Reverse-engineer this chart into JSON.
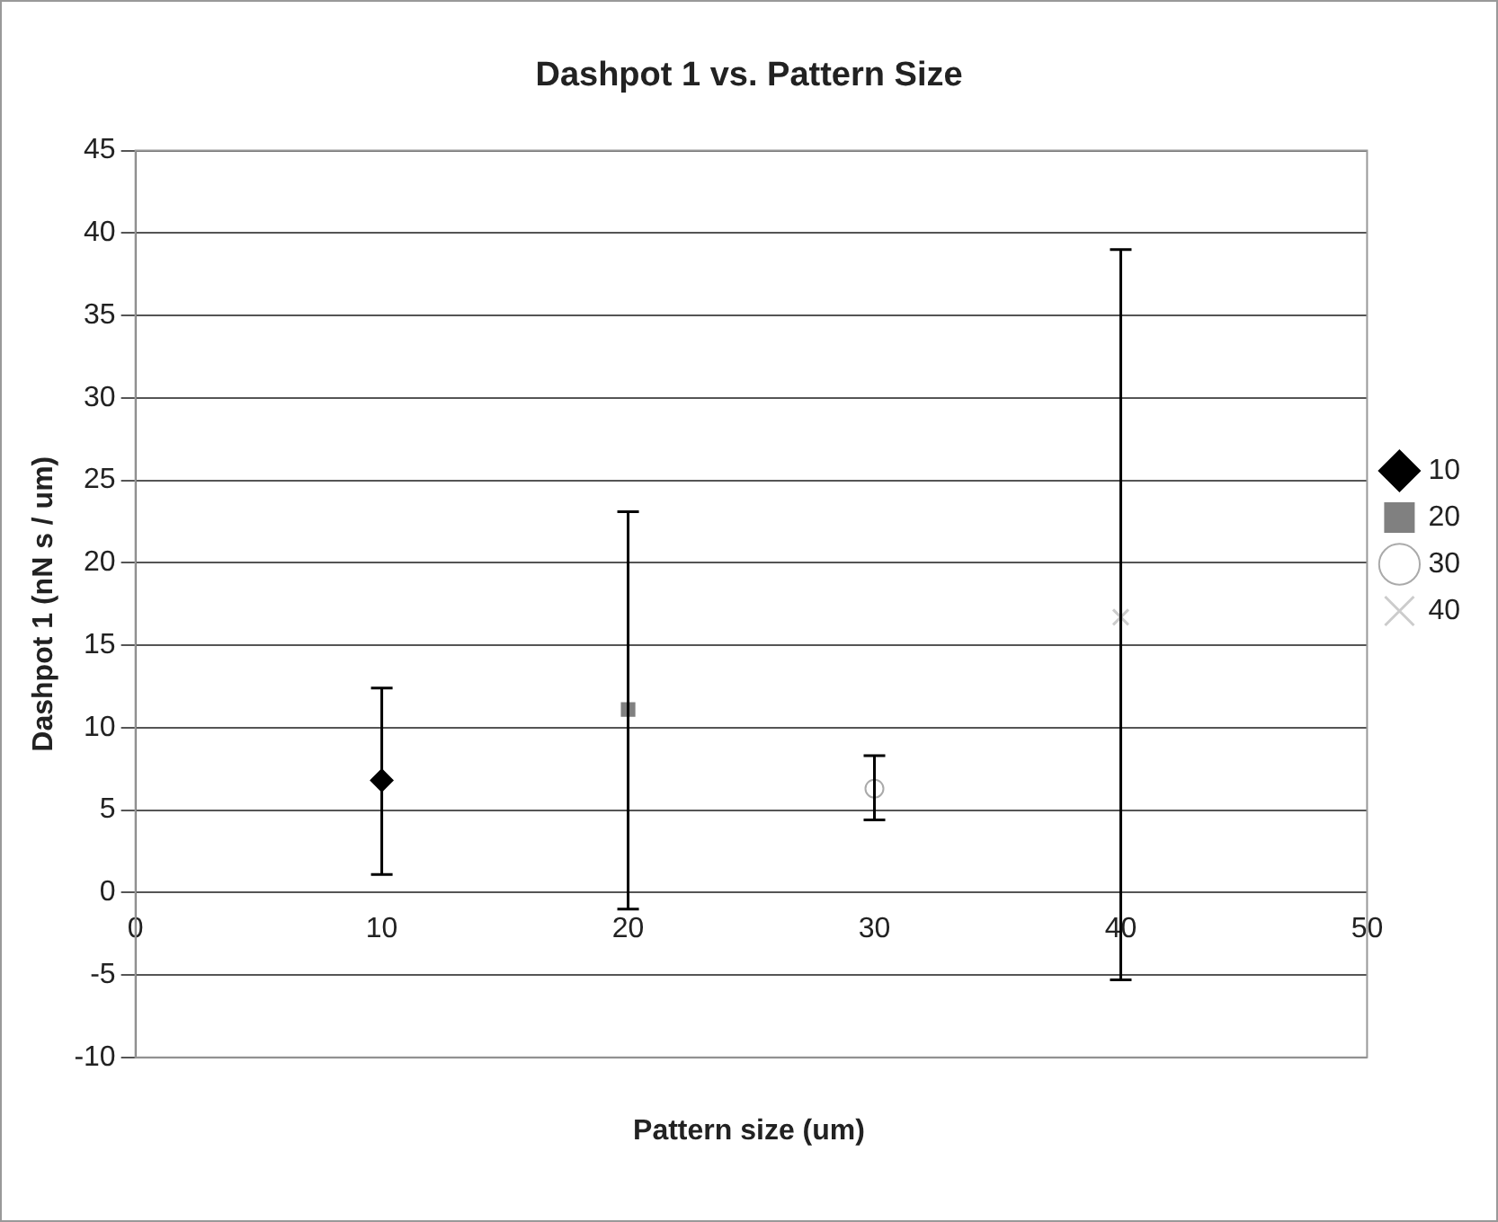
{
  "chart_data": {
    "type": "scatter",
    "title": "Dashpot 1 vs. Pattern Size",
    "xlabel": "Pattern size (um)",
    "ylabel": "Dashpot 1 (nN s / um)",
    "xlim": [
      0,
      50
    ],
    "xticks": [
      0,
      10,
      20,
      30,
      40,
      50
    ],
    "ylim": [
      -10,
      45
    ],
    "yticks": [
      -10,
      -5,
      0,
      5,
      10,
      15,
      20,
      25,
      30,
      35,
      40,
      45
    ],
    "grid": "y",
    "legend": "right",
    "series": [
      {
        "name": "10",
        "color": "#000000",
        "marker": "diamond",
        "x": [
          10
        ],
        "values": [
          6.8
        ],
        "errors": [
          [
            1.1,
            12.4
          ]
        ]
      },
      {
        "name": "20",
        "color": "#808080",
        "marker": "square",
        "x": [
          20
        ],
        "values": [
          11.1
        ],
        "errors": [
          [
            -1.0,
            23.1
          ]
        ]
      },
      {
        "name": "30",
        "color": "#ffffff",
        "marker": "circle",
        "x": [
          30
        ],
        "values": [
          6.3
        ],
        "errors": [
          [
            4.4,
            8.3
          ]
        ]
      },
      {
        "name": "40",
        "color": "#cccccc",
        "marker": "cross",
        "x": [
          40
        ],
        "values": [
          16.7
        ],
        "errors": [
          [
            -5.3,
            39.0
          ]
        ]
      }
    ]
  }
}
